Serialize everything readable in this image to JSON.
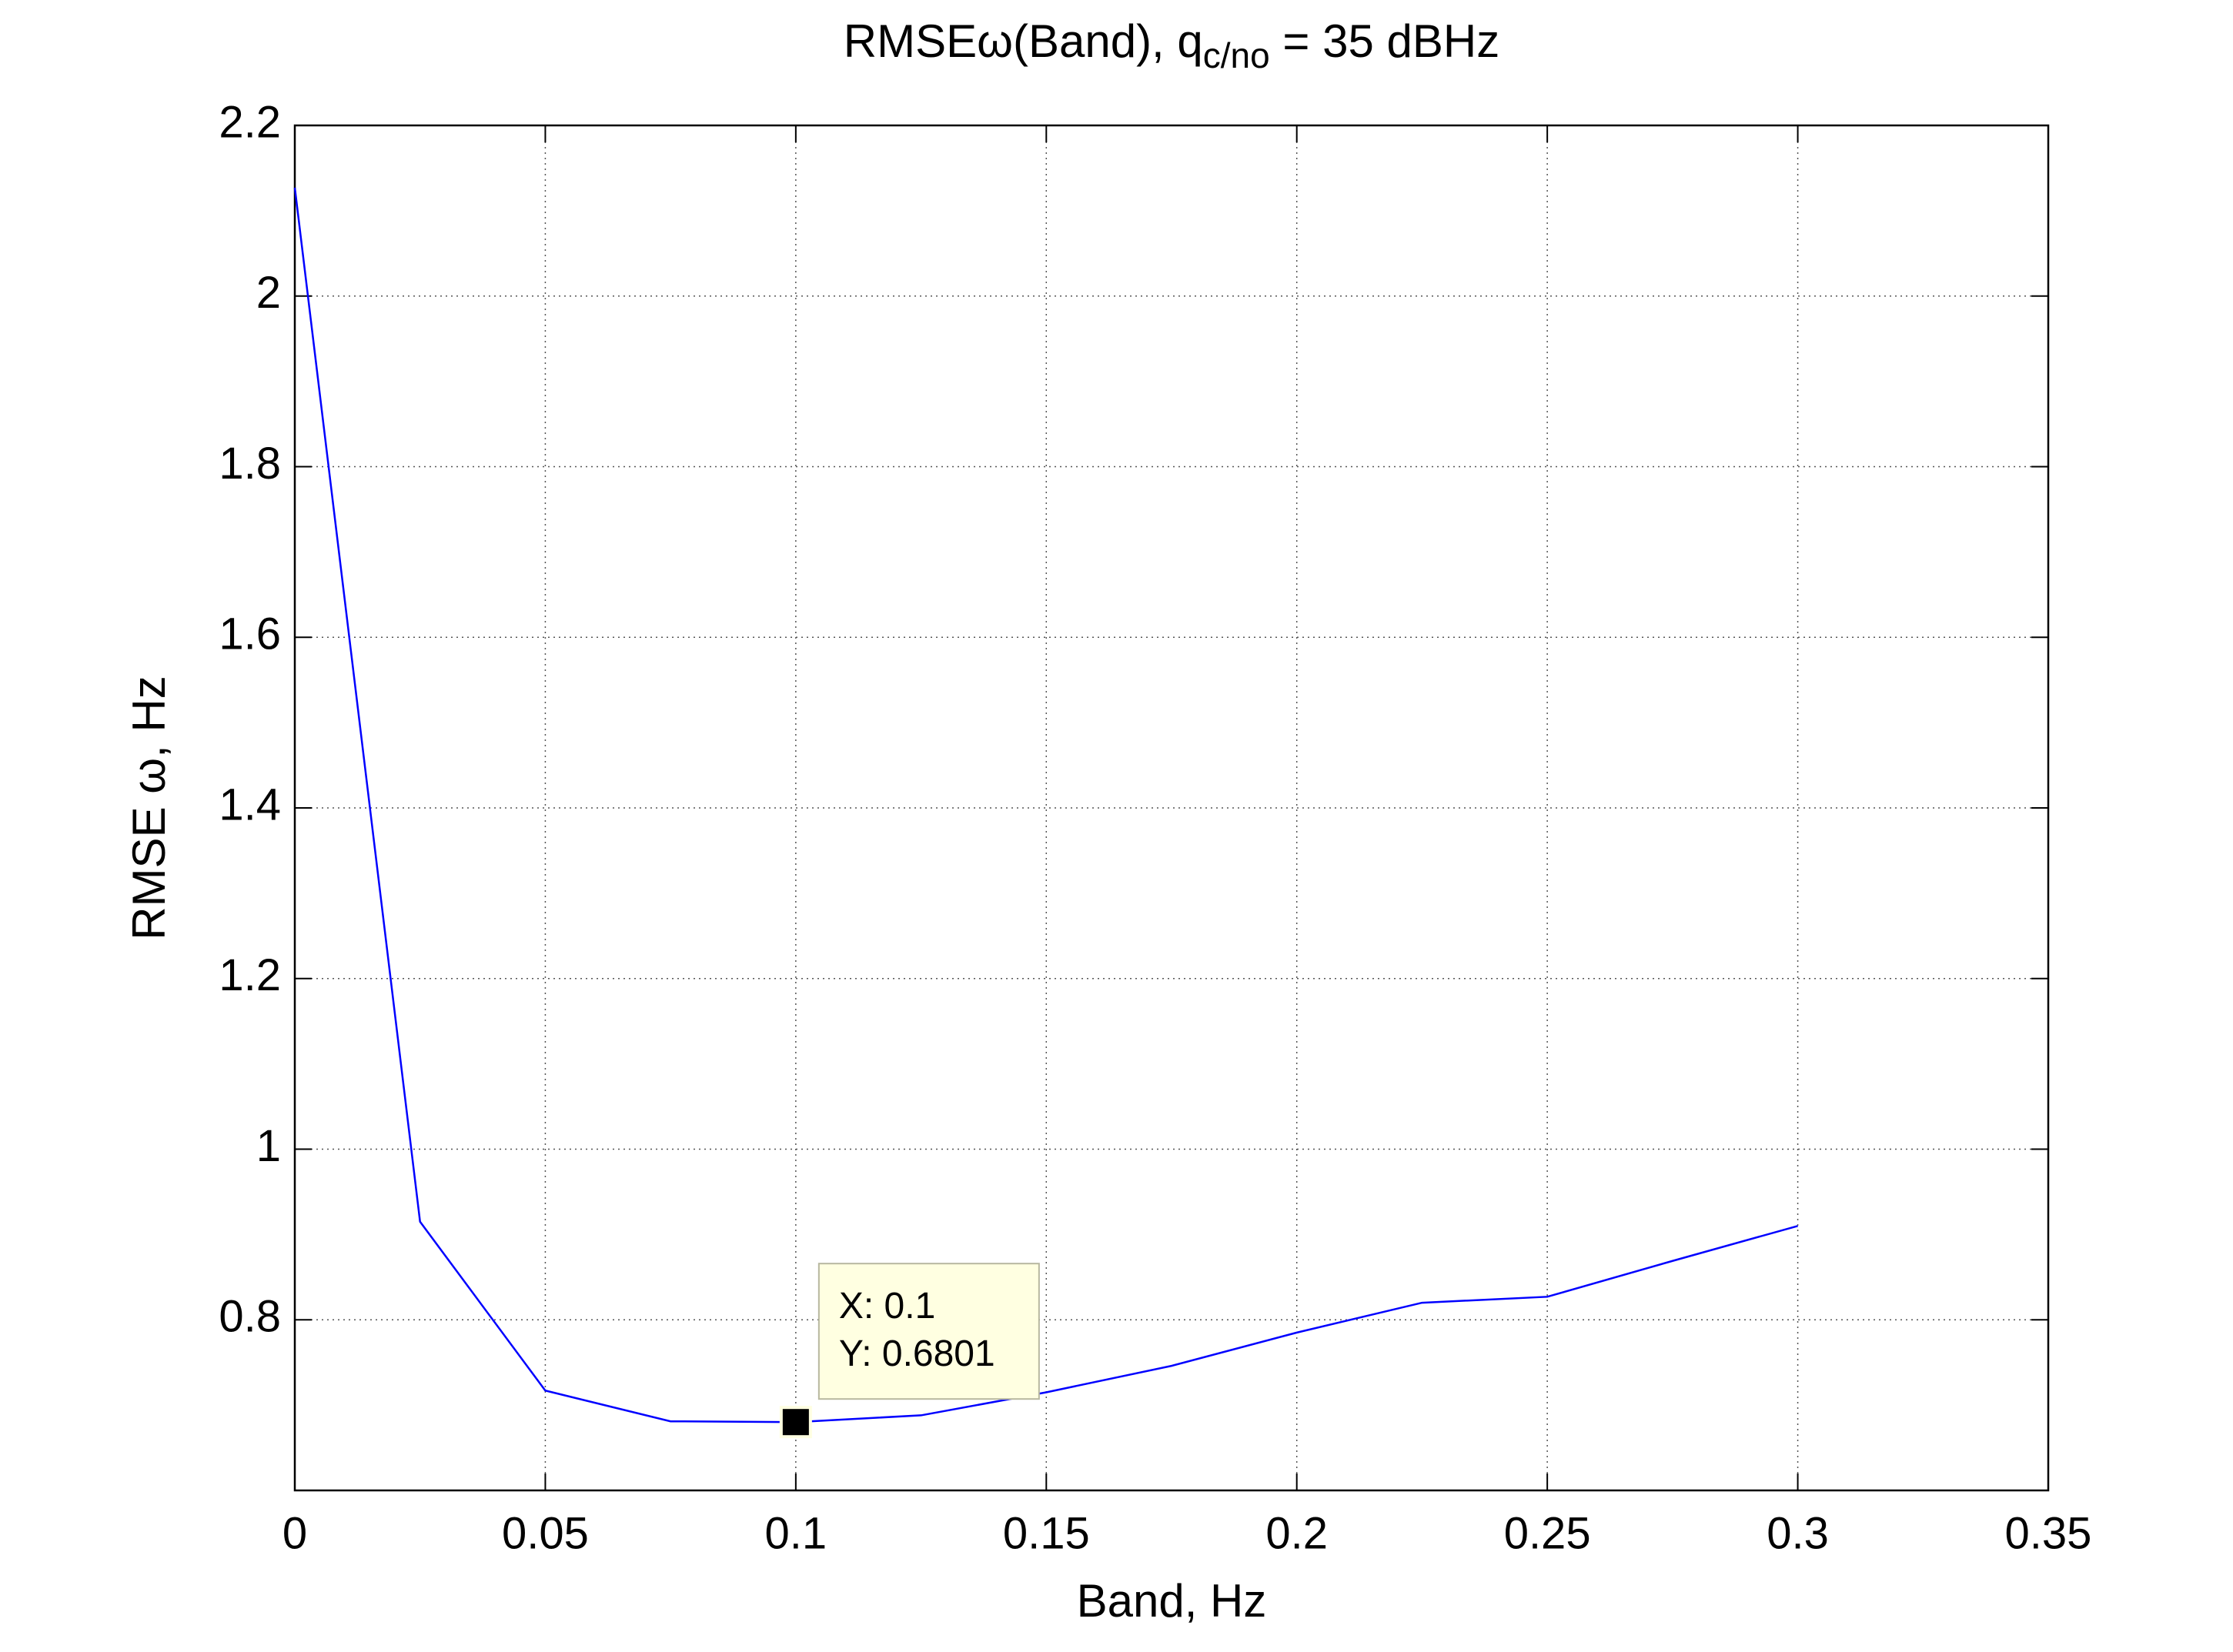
{
  "chart_data": {
    "type": "line",
    "title": {
      "main": "RMSEω(Band), q",
      "subscript": "c/no",
      "suffix": " = 35 dBHz"
    },
    "x_label": "Band, Hz",
    "y_label": "RMSE ω, Hz",
    "x": [
      0,
      0.025,
      0.05,
      0.075,
      0.1,
      0.125,
      0.15,
      0.175,
      0.2,
      0.225,
      0.25,
      0.275,
      0.3
    ],
    "values": [
      2.127,
      0.915,
      0.717,
      0.681,
      0.6801,
      0.688,
      0.715,
      0.746,
      0.785,
      0.82,
      0.827,
      0.869,
      0.91
    ],
    "color": "#0000ff",
    "xlim": [
      0,
      0.35
    ],
    "xticks": [
      0,
      0.05,
      0.1,
      0.15,
      0.2,
      0.25,
      0.3,
      0.35
    ],
    "ylim": [
      0.6,
      2.2
    ],
    "yticks": [
      0.8,
      1,
      1.2,
      1.4,
      1.6,
      1.8,
      2,
      2.2
    ],
    "grid": true,
    "datatip": {
      "x": 0.1,
      "y": 0.6801,
      "labels": [
        "X: 0.1",
        "Y: 0.6801"
      ]
    }
  }
}
